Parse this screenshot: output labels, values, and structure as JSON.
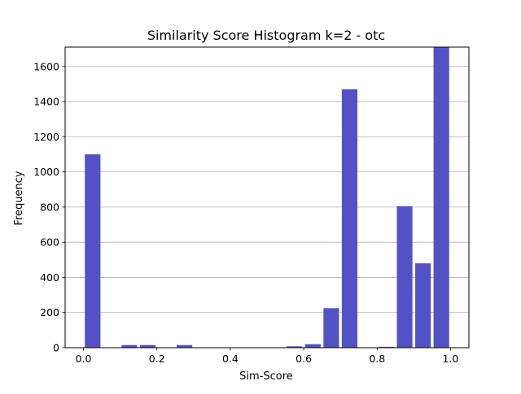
{
  "chart_data": {
    "type": "bar",
    "title": "Similarity Score Histogram k=2 - otc",
    "xlabel": "Sim-Score",
    "ylabel": "Frequency",
    "xlim": [
      -0.05,
      1.05
    ],
    "ylim": [
      0,
      1710
    ],
    "x_ticks": [
      0.0,
      0.2,
      0.4,
      0.6,
      0.8,
      1.0
    ],
    "x_tick_labels": [
      "0.0",
      "0.2",
      "0.4",
      "0.6",
      "0.8",
      "1.0"
    ],
    "y_ticks": [
      0,
      200,
      400,
      600,
      800,
      1000,
      1200,
      1400,
      1600
    ],
    "y_tick_labels": [
      "0",
      "200",
      "400",
      "600",
      "800",
      "1000",
      "1200",
      "1400",
      "1600"
    ],
    "bar_color": "#4f4fc4",
    "grid": "y-major",
    "bin_width": 0.05,
    "bins": [
      {
        "x": 0.025,
        "value": 1100
      },
      {
        "x": 0.125,
        "value": 15
      },
      {
        "x": 0.175,
        "value": 15
      },
      {
        "x": 0.275,
        "value": 15
      },
      {
        "x": 0.575,
        "value": 8
      },
      {
        "x": 0.625,
        "value": 20
      },
      {
        "x": 0.675,
        "value": 225
      },
      {
        "x": 0.725,
        "value": 1470
      },
      {
        "x": 0.825,
        "value": 5
      },
      {
        "x": 0.875,
        "value": 805
      },
      {
        "x": 0.925,
        "value": 480
      },
      {
        "x": 0.975,
        "value": 1710
      }
    ]
  }
}
